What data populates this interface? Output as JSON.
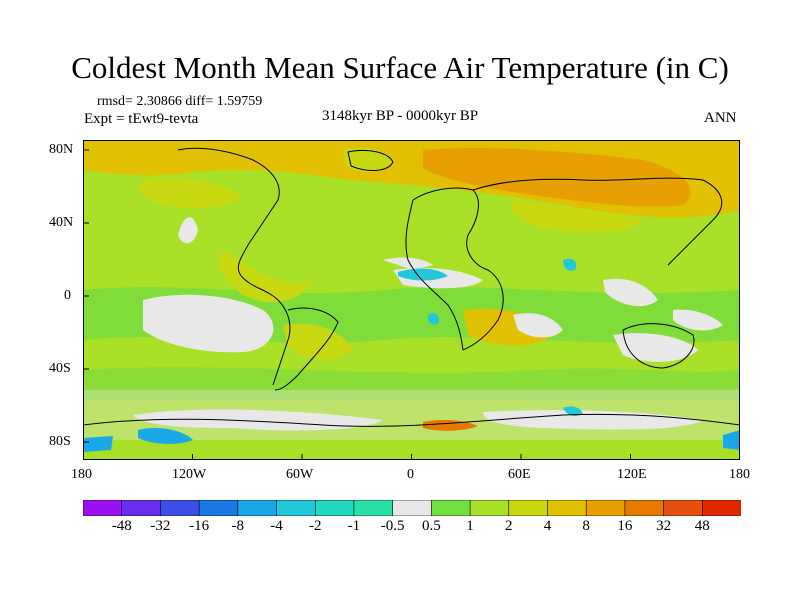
{
  "title": "Coldest Month Mean Surface Air Temperature (in C)",
  "stats": "rmsd= 2.30866 diff= 1.59759",
  "experiment": "Expt = tEwt9-tevta",
  "period": "3148kyr BP - 0000kyr BP",
  "season": "ANN",
  "lat_ticks": [
    "80N",
    "40N",
    "0",
    "40S",
    "80S"
  ],
  "lon_ticks": [
    "180",
    "120W",
    "60W",
    "0",
    "60E",
    "120E",
    "180"
  ],
  "colorbar": {
    "labels": [
      "-48",
      "-32",
      "-16",
      "-8",
      "-4",
      "-2",
      "-1",
      "-0.5",
      "0.5",
      "1",
      "2",
      "4",
      "8",
      "16",
      "32",
      "48"
    ],
    "colors": [
      "#9a10f0",
      "#6a2ef0",
      "#3c4ee8",
      "#1a78e0",
      "#1aa8e8",
      "#22c8d8",
      "#20d8c0",
      "#28e0a8",
      "#e8e8e8",
      "#70e040",
      "#a8e028",
      "#c8d810",
      "#e0c000",
      "#e8a000",
      "#e87800",
      "#e85010",
      "#e02800"
    ]
  }
}
